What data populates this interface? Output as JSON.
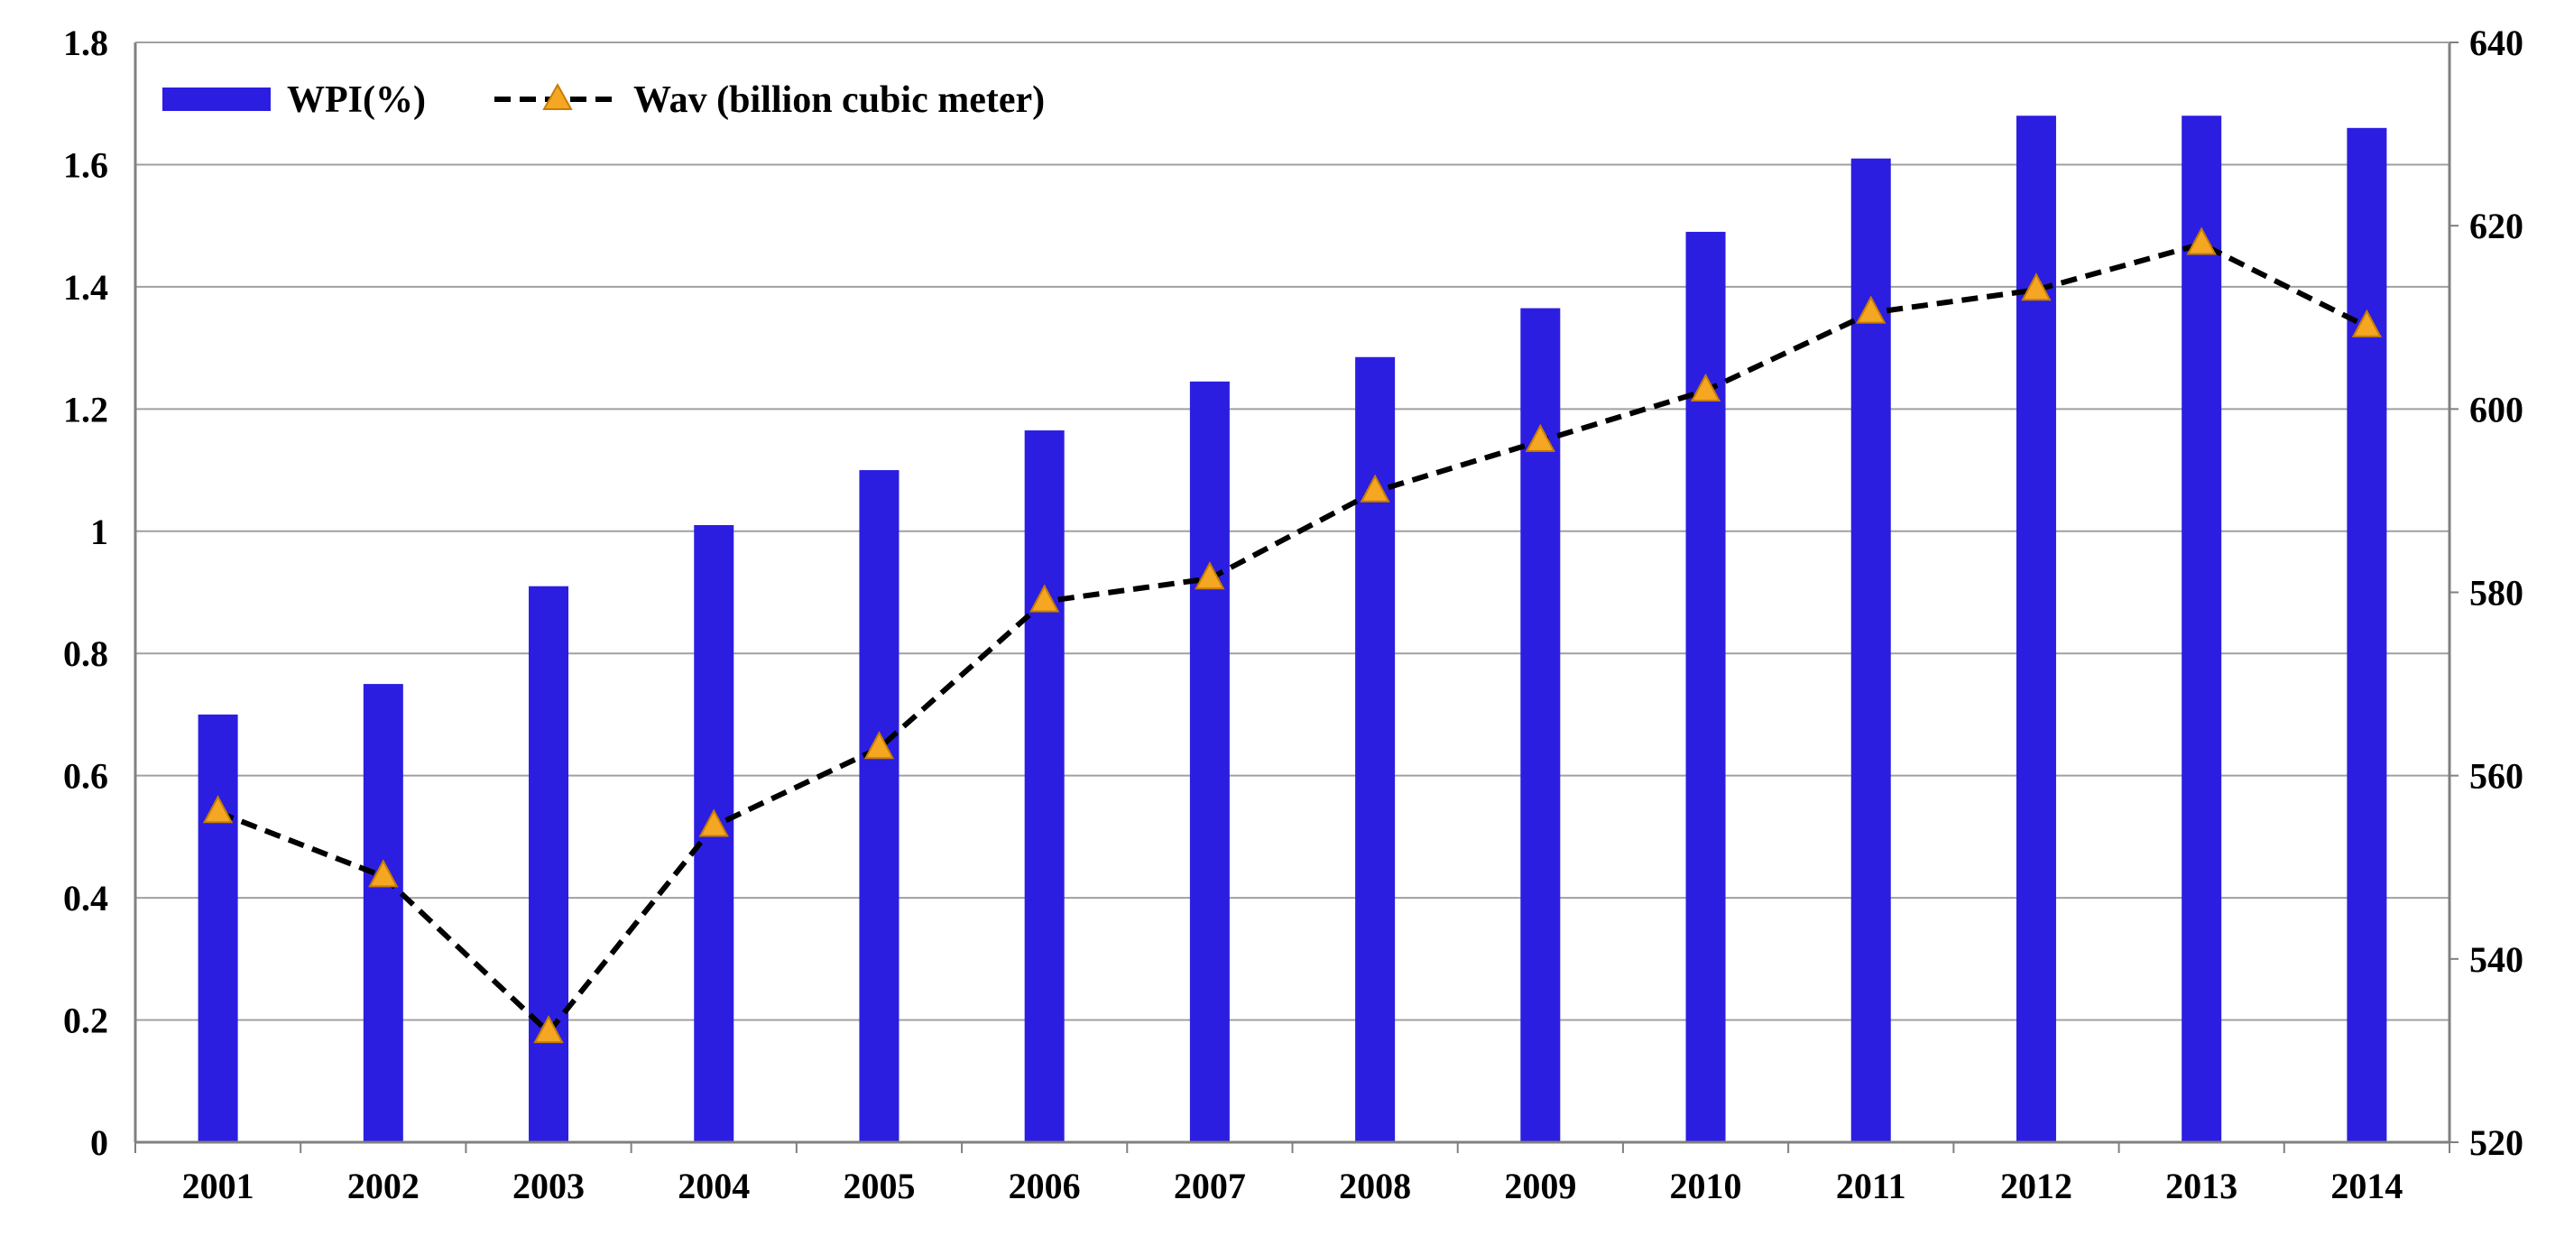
{
  "chart_data": {
    "type": "bar+line",
    "categories": [
      "2001",
      "2002",
      "2003",
      "2004",
      "2005",
      "2006",
      "2007",
      "2008",
      "2009",
      "2010",
      "2011",
      "2012",
      "2013",
      "2014"
    ],
    "series": [
      {
        "name": "WPI(%)",
        "type": "bar",
        "axis": "left",
        "color": "#2b1ee0",
        "values": [
          0.7,
          0.75,
          0.91,
          1.01,
          1.1,
          1.165,
          1.245,
          1.285,
          1.365,
          1.49,
          1.61,
          1.68,
          1.68,
          1.66
        ]
      },
      {
        "name": "Wav (billion cubic meter)",
        "type": "line",
        "axis": "right",
        "color": "#000000",
        "line_style": "dashed",
        "marker": "triangle",
        "marker_color": "#f5a623",
        "values": [
          556,
          549,
          532,
          554.5,
          563,
          579,
          581.5,
          591,
          596.5,
          602,
          610.5,
          613,
          618,
          609
        ]
      }
    ],
    "ylim_left": [
      0,
      1.8
    ],
    "yticks_left": [
      "0",
      "0.2",
      "0.4",
      "0.6",
      "0.8",
      "1",
      "1.2",
      "1.4",
      "1.6",
      "1.8"
    ],
    "ylim_right": [
      520,
      640
    ],
    "yticks_right": [
      "520",
      "540",
      "560",
      "580",
      "600",
      "620",
      "640"
    ],
    "title": "",
    "xlabel": "",
    "ylabel_left": "",
    "ylabel_right": "",
    "grid": "horizontal",
    "legend_position": "top-left",
    "gridline_color": "#a0a0a0"
  }
}
